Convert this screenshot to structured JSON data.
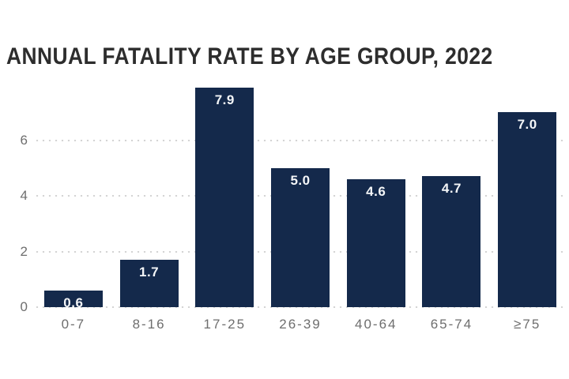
{
  "chart_data": {
    "type": "bar",
    "title": "ANNUAL FATALITY RATE BY AGE GROUP, 2022",
    "categories": [
      "0-7",
      "8-16",
      "17-25",
      "26-39",
      "40-64",
      "65-74",
      "≥75"
    ],
    "values": [
      0.6,
      1.7,
      7.9,
      5.0,
      4.6,
      4.7,
      7.0
    ],
    "value_labels": [
      "0.6",
      "1.7",
      "7.9",
      "5.0",
      "4.6",
      "4.7",
      "7.0"
    ],
    "xlabel": "",
    "ylabel": "",
    "y_ticks": [
      "0",
      "2",
      "4",
      "6"
    ],
    "y_tick_values": [
      0,
      2,
      4,
      6
    ],
    "ylim": [
      0,
      8
    ],
    "grid": "horizontal-dotted",
    "legend": "none",
    "colors": {
      "bar": "#14294b",
      "value_label": "#f4f6f8",
      "axis_text": "#6e6e6e",
      "title": "#2d2d2d",
      "gridline": "#d2d2d2",
      "background": "#ffffff"
    }
  }
}
